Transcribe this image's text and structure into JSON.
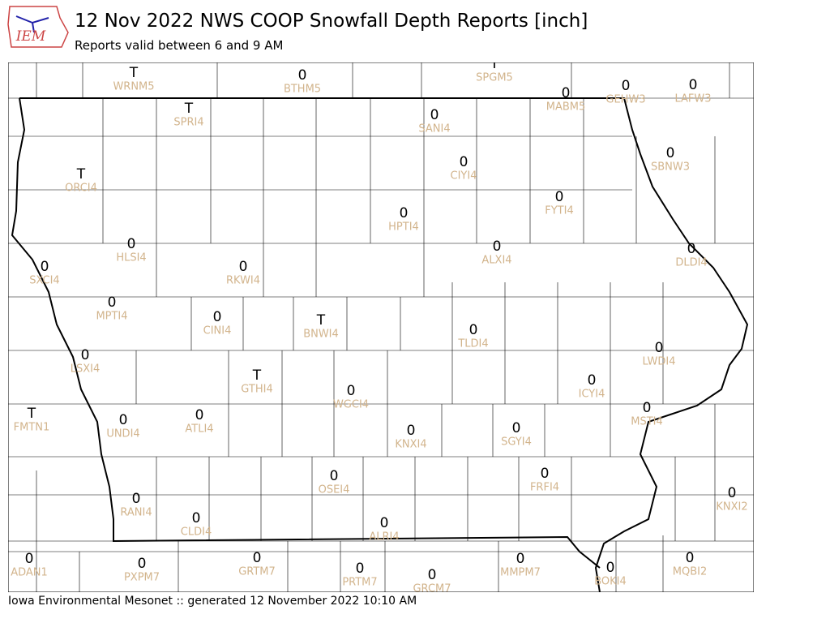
{
  "header": {
    "logo": "IEM",
    "title": "12 Nov 2022 NWS COOP Snowfall Depth Reports [inch]",
    "subtitle": "Reports valid between 6 and 9 AM"
  },
  "stations": [
    {
      "id": "WRNM5",
      "value": "T"
    },
    {
      "id": "BTHM5",
      "value": 0
    },
    {
      "id": "SPGM5",
      "value": "T"
    },
    {
      "id": "MABM5",
      "value": 0
    },
    {
      "id": "GEHW3",
      "value": 0
    },
    {
      "id": "LAFW3",
      "value": 0
    },
    {
      "id": "SPRI4",
      "value": "T"
    },
    {
      "id": "SANI4",
      "value": 0
    },
    {
      "id": "CIYI4",
      "value": 0
    },
    {
      "id": "SBNW3",
      "value": 0
    },
    {
      "id": "ORCI4",
      "value": "T"
    },
    {
      "id": "FYTI4",
      "value": 0
    },
    {
      "id": "HPTI4",
      "value": 0
    },
    {
      "id": "HLSI4",
      "value": 0
    },
    {
      "id": "ALXI4",
      "value": 0
    },
    {
      "id": "DLDI4",
      "value": 0
    },
    {
      "id": "SXCI4",
      "value": 0
    },
    {
      "id": "RKWI4",
      "value": 0
    },
    {
      "id": "MPTI4",
      "value": 0
    },
    {
      "id": "CINI4",
      "value": 0
    },
    {
      "id": "BNWI4",
      "value": "T"
    },
    {
      "id": "TLDI4",
      "value": 0
    },
    {
      "id": "LWDI4",
      "value": 0
    },
    {
      "id": "LSXI4",
      "value": 0
    },
    {
      "id": "GTHI4",
      "value": "T"
    },
    {
      "id": "ICYI4",
      "value": 0
    },
    {
      "id": "WGCI4",
      "value": 0
    },
    {
      "id": "FMTN1",
      "value": "T"
    },
    {
      "id": "MSTI4",
      "value": 0
    },
    {
      "id": "UNDI4",
      "value": 0
    },
    {
      "id": "ATLI4",
      "value": 0
    },
    {
      "id": "KNXI4",
      "value": 0
    },
    {
      "id": "SGYI4",
      "value": 0
    },
    {
      "id": "OSEI4",
      "value": 0
    },
    {
      "id": "FRFI4",
      "value": 0
    },
    {
      "id": "KNXI2",
      "value": 0
    },
    {
      "id": "RANI4",
      "value": 0
    },
    {
      "id": "CLDI4",
      "value": 0
    },
    {
      "id": "ALRI4",
      "value": 0
    },
    {
      "id": "ADAN1",
      "value": 0
    },
    {
      "id": "PXPM7",
      "value": 0
    },
    {
      "id": "GRTM7",
      "value": 0
    },
    {
      "id": "PRTM7",
      "value": 0
    },
    {
      "id": "GRCM7",
      "value": 0
    },
    {
      "id": "MMPM7",
      "value": 0
    },
    {
      "id": "BOKI4",
      "value": 0
    },
    {
      "id": "MQBI2",
      "value": 0
    }
  ],
  "footer": "Iowa Environmental Mesonet :: generated 12 November 2022 10:10 AM"
}
